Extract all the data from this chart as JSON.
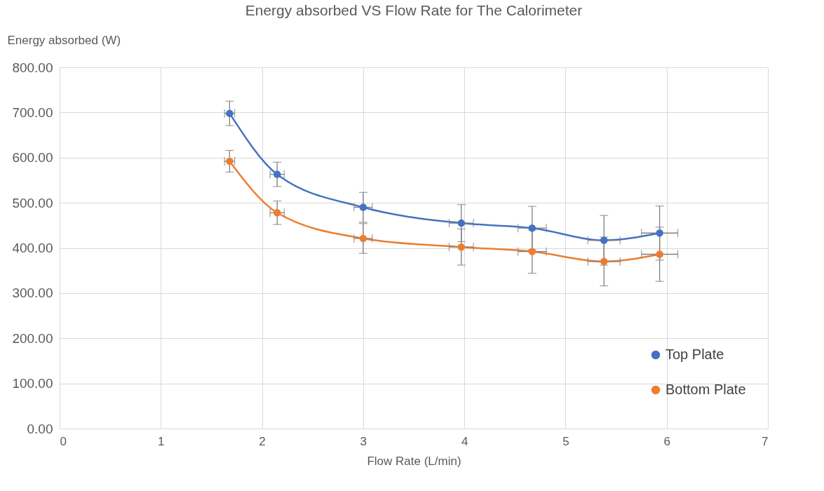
{
  "chart_data": {
    "type": "line",
    "title": "Energy absorbed VS Flow Rate for The Calorimeter",
    "xlabel": "Flow Rate (L/min)",
    "ylabel": "Energy absorbed (W)",
    "xlim": [
      0,
      7
    ],
    "xticks": [
      0,
      1,
      2,
      3,
      4,
      5,
      6,
      7
    ],
    "ylim": [
      0,
      800
    ],
    "yticks": [
      {
        "value": 0,
        "label": "0.00"
      },
      {
        "value": 100,
        "label": "100.00"
      },
      {
        "value": 200,
        "label": "200.00"
      },
      {
        "value": 300,
        "label": "300.00"
      },
      {
        "value": 400,
        "label": "400.00"
      },
      {
        "value": 500,
        "label": "500.00"
      },
      {
        "value": 600,
        "label": "600.00"
      },
      {
        "value": 700,
        "label": "700.00"
      },
      {
        "value": 800,
        "label": "800.00"
      }
    ],
    "grid": true,
    "legend": "bottom right",
    "marker": "circle",
    "line_style": "solid",
    "series": [
      {
        "name": "Top Plate",
        "color": "#4472c4",
        "x": [
          1.68,
          2.15,
          3.0,
          3.97,
          4.67,
          5.38,
          5.93
        ],
        "values": [
          698,
          563,
          490,
          455,
          444,
          417,
          433
        ],
        "errors": [
          27,
          27,
          33,
          41,
          48,
          55,
          60
        ],
        "xerrors": [
          0.05,
          0.07,
          0.09,
          0.12,
          0.14,
          0.16,
          0.18
        ]
      },
      {
        "name": "Bottom Plate",
        "color": "#ed7d31",
        "x": [
          1.68,
          2.15,
          3.0,
          3.97,
          4.67,
          5.38,
          5.93
        ],
        "values": [
          592,
          478,
          421,
          402,
          392,
          370,
          386
        ],
        "errors": [
          24,
          26,
          33,
          40,
          48,
          54,
          60
        ],
        "xerrors": [
          0.05,
          0.07,
          0.09,
          0.12,
          0.14,
          0.16,
          0.18
        ]
      }
    ]
  }
}
